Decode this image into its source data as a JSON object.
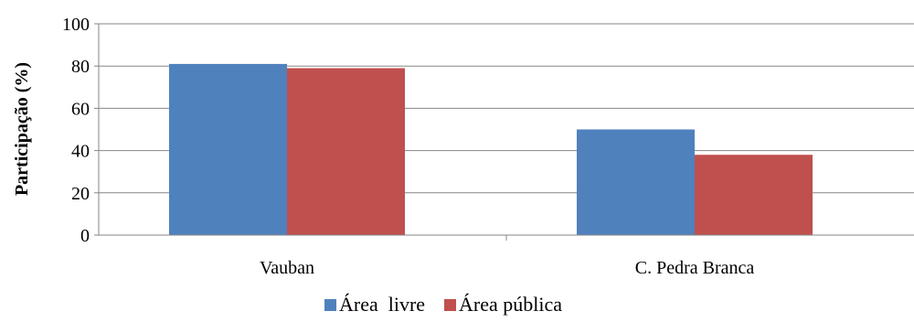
{
  "chart_data": {
    "type": "bar",
    "categories": [
      "Vauban",
      "C. Pedra Branca"
    ],
    "series": [
      {
        "name": "Área  livre",
        "color": "#4F81BD",
        "values": [
          81,
          50
        ]
      },
      {
        "name": "Área pública",
        "color": "#C0504D",
        "values": [
          79,
          38
        ]
      }
    ],
    "ylabel": "Participação (%)",
    "ylim": [
      0,
      100
    ],
    "yticks": [
      "0",
      "20",
      "40",
      "60",
      "80",
      "100"
    ],
    "grid": true,
    "legend": "bottom"
  }
}
